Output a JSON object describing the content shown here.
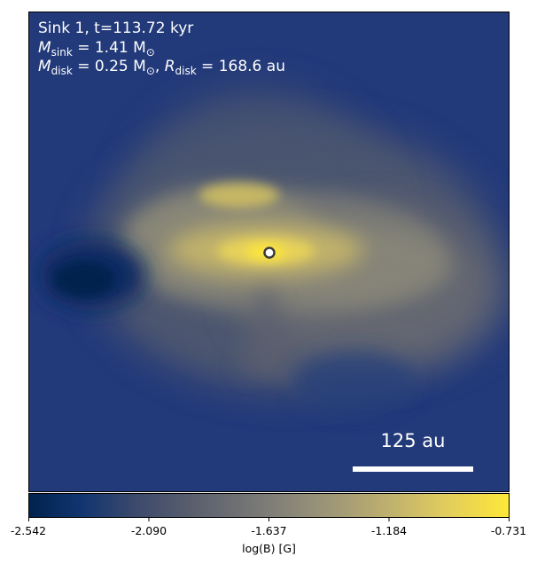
{
  "chart_data": {
    "type": "heatmap",
    "annotations": {
      "line1": "Sink 1, t=113.72 kyr",
      "line2_label": "M",
      "line2_sub": "sink",
      "line2_rest": " = 1.41 M",
      "line2_sun": "⊙",
      "line3_label": "M",
      "line3_sub": "disk",
      "line3_rest": " = 0.25 M",
      "line3_sun": "⊙",
      "line3_sep": ", ",
      "line3_r": "R",
      "line3_rsub": "disk",
      "line3_rrest": " = 168.6 au"
    },
    "scalebar": {
      "label": "125 au",
      "length_au": 125
    },
    "sink": {
      "x_frac": 0.5,
      "y_frac": 0.5
    },
    "colorbar": {
      "label": "log(B) [G]",
      "vmin": -2.542,
      "vmax": -0.731,
      "ticks": [
        "-2.542",
        "-2.090",
        "-1.637",
        "-1.184",
        "-0.731"
      ],
      "colormap": "cividis",
      "colors": [
        "#00224e",
        "#123570",
        "#3b496c",
        "#575d6d",
        "#707173",
        "#8a8779",
        "#a69d75",
        "#c4b56c",
        "#e4cf5b",
        "#fee838"
      ]
    },
    "grid": false
  }
}
